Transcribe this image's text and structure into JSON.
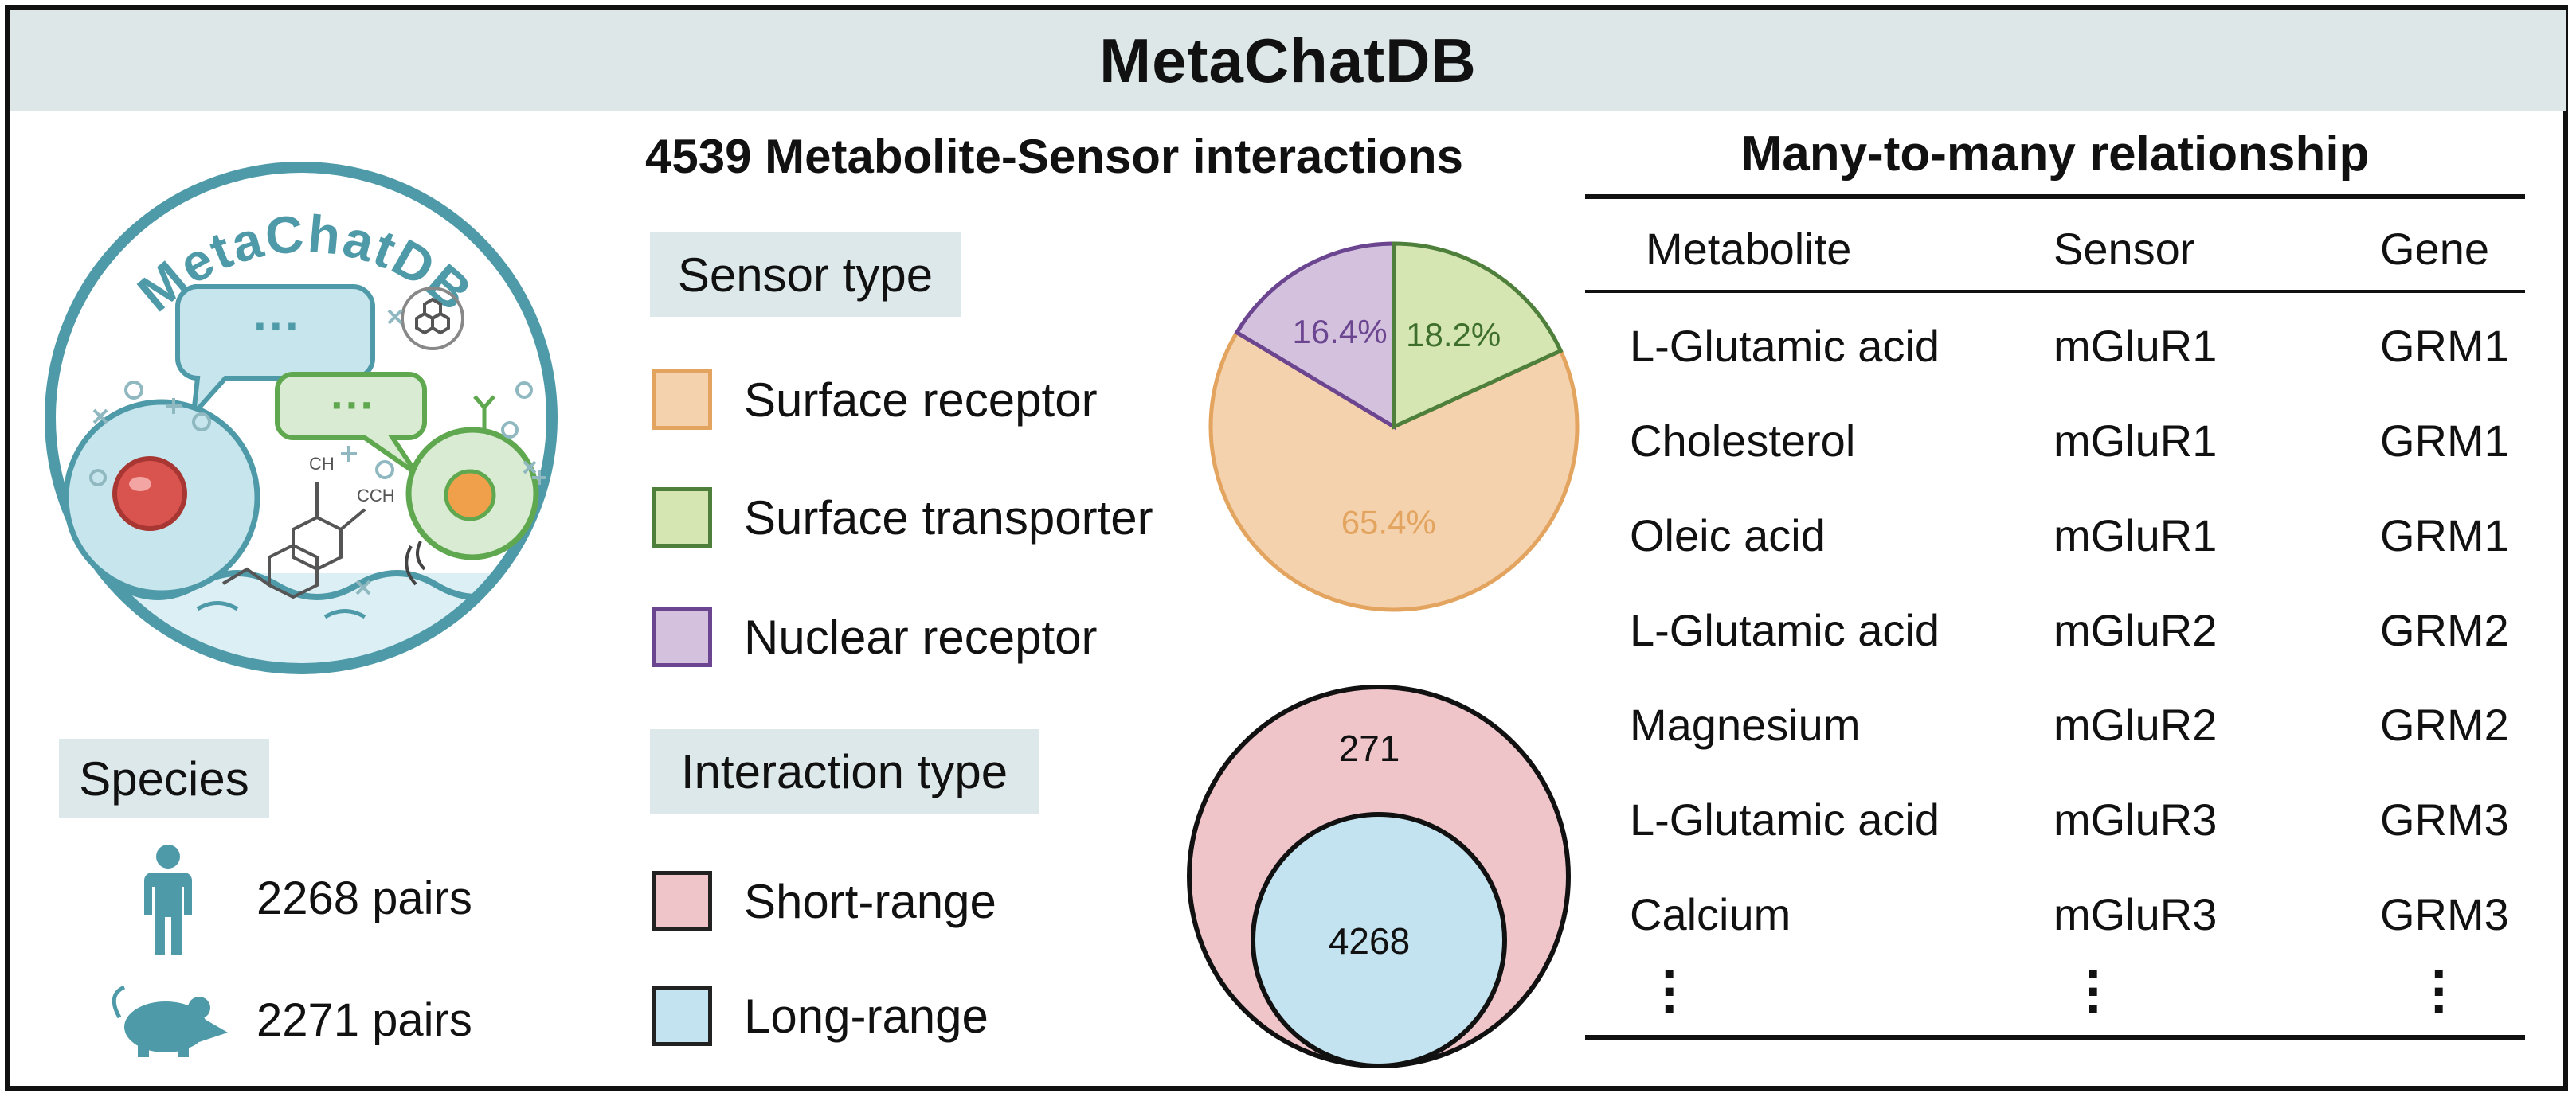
{
  "banner": {
    "title": "MetaChatDB"
  },
  "logo": {
    "text": "MetaChatDB"
  },
  "species": {
    "label": "Species",
    "items": [
      {
        "icon": "human-icon",
        "pairs": "2268 pairs"
      },
      {
        "icon": "mouse-icon",
        "pairs": "2271 pairs"
      }
    ]
  },
  "interactions": {
    "title": "4539 Metabolite-Sensor interactions",
    "sensor_label": "Sensor type",
    "sensor_types": [
      {
        "label": "Surface receptor",
        "fill": "#f4d2ae",
        "border": "#e3a45f"
      },
      {
        "label": "Surface transporter",
        "fill": "#d6e6b3",
        "border": "#4e7f3b"
      },
      {
        "label": "Nuclear receptor",
        "fill": "#d3c1de",
        "border": "#6b4590"
      }
    ],
    "interaction_label": "Interaction type",
    "interaction_types": [
      {
        "label": "Short-range",
        "fill": "#efc5ca",
        "border": "#222222"
      },
      {
        "label": "Long-range",
        "fill": "#c2e3ef",
        "border": "#222222"
      }
    ]
  },
  "chart_data": {
    "type": "pie",
    "title": "",
    "slices": [
      {
        "label": "65.4%",
        "value": 65.4,
        "fill": "#f4d2ae",
        "stroke": "#e3a45f",
        "text_color": "#e3a45f"
      },
      {
        "label": "16.4%",
        "value": 16.4,
        "fill": "#d3c1de",
        "stroke": "#6b4590",
        "text_color": "#6b4590"
      },
      {
        "label": "18.2%",
        "value": 18.2,
        "fill": "#d6e6b3",
        "stroke": "#4e7f3b",
        "text_color": "#3e6e2c"
      }
    ]
  },
  "nested": {
    "outer_label": "271",
    "inner_label": "4268",
    "outer_value": 4539,
    "inner_value": 4268
  },
  "relationship": {
    "title": "Many-to-many relationship",
    "headers": [
      "Metabolite",
      "Sensor",
      "Gene"
    ],
    "rows": [
      [
        "L-Glutamic acid",
        "mGluR1",
        "GRM1"
      ],
      [
        "Cholesterol",
        "mGluR1",
        "GRM1"
      ],
      [
        "Oleic acid",
        "mGluR1",
        "GRM1"
      ],
      [
        "L-Glutamic acid",
        "mGluR2",
        "GRM2"
      ],
      [
        "Magnesium",
        "mGluR2",
        "GRM2"
      ],
      [
        "L-Glutamic acid",
        "mGluR3",
        "GRM3"
      ],
      [
        "Calcium",
        "mGluR3",
        "GRM3"
      ]
    ]
  }
}
